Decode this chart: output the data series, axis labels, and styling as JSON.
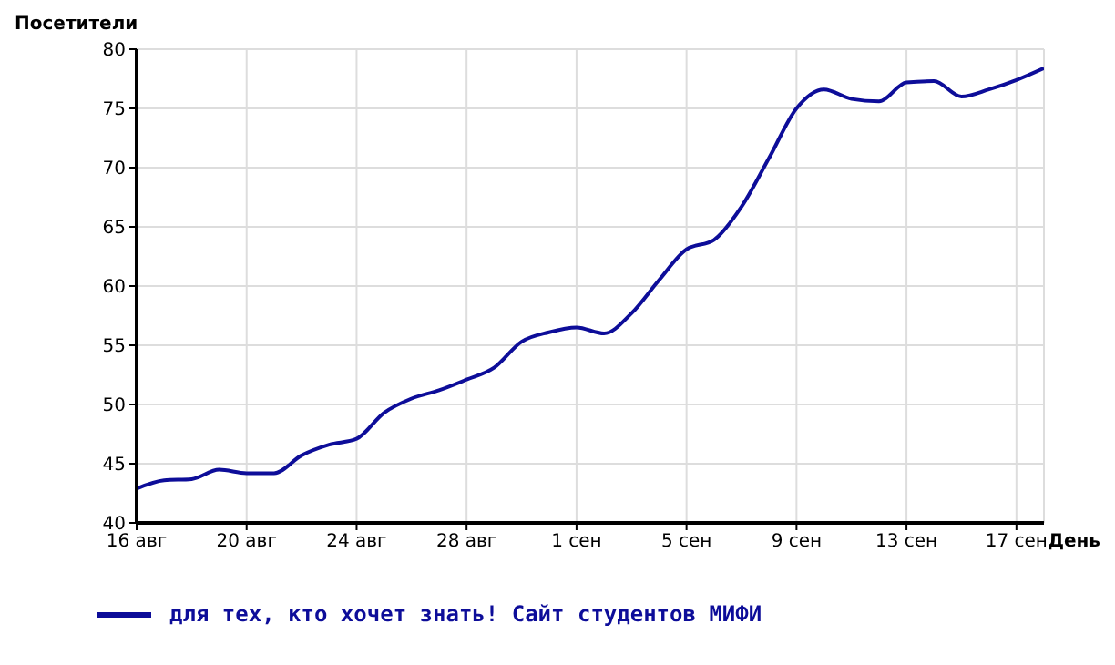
{
  "chart_data": {
    "type": "line",
    "xlabel": "День",
    "ylabel": "Посетители",
    "x": [
      "--08-16",
      "--08-17",
      "--08-18",
      "--08-19",
      "--08-20",
      "--08-21",
      "--08-22",
      "--08-23",
      "--08-24",
      "--08-25",
      "--08-26",
      "--08-27",
      "--08-28",
      "--08-29",
      "--08-30",
      "--08-31",
      "--09-01",
      "--09-02",
      "--09-03",
      "--09-04",
      "--09-05",
      "--09-06",
      "--09-07",
      "--09-08",
      "--09-09",
      "--09-10",
      "--09-11",
      "--09-12",
      "--09-13",
      "--09-14",
      "--09-15",
      "--09-16",
      "--09-17",
      "--09-18"
    ],
    "series": [
      {
        "name": "для тех, кто хочет знать! Сайт студентов МИФИ",
        "color": "#0d0d99",
        "values": [
          42.9,
          43.6,
          43.7,
          44.5,
          44.2,
          44.2,
          45.7,
          46.6,
          47.1,
          49.3,
          50.5,
          51.2,
          52.1,
          53.1,
          55.3,
          56.1,
          56.5,
          56.0,
          57.7,
          60.5,
          63.1,
          63.9,
          66.7,
          70.8,
          75.0,
          76.6,
          75.8,
          75.6,
          77.2,
          77.3,
          76.0,
          76.6,
          77.4,
          78.4
        ]
      }
    ],
    "xlim": [
      "--08-16",
      "--09-18"
    ],
    "xticks": [
      {
        "value": "--08-16",
        "label": "16 авг"
      },
      {
        "value": "--08-20",
        "label": "20 авг"
      },
      {
        "value": "--08-24",
        "label": "24 авг"
      },
      {
        "value": "--08-28",
        "label": "28 авг"
      },
      {
        "value": "--09-01",
        "label": "1 сен"
      },
      {
        "value": "--09-05",
        "label": "5 сен"
      },
      {
        "value": "--09-09",
        "label": "9 сен"
      },
      {
        "value": "--09-13",
        "label": "13 сен"
      },
      {
        "value": "--09-17",
        "label": "17 сен"
      }
    ],
    "ylim": [
      40,
      80
    ],
    "yticks": [
      40,
      45,
      50,
      55,
      60,
      65,
      70,
      75,
      80
    ],
    "grid": true,
    "legend": "bottom left",
    "marker": "none",
    "line_style": "solid"
  }
}
